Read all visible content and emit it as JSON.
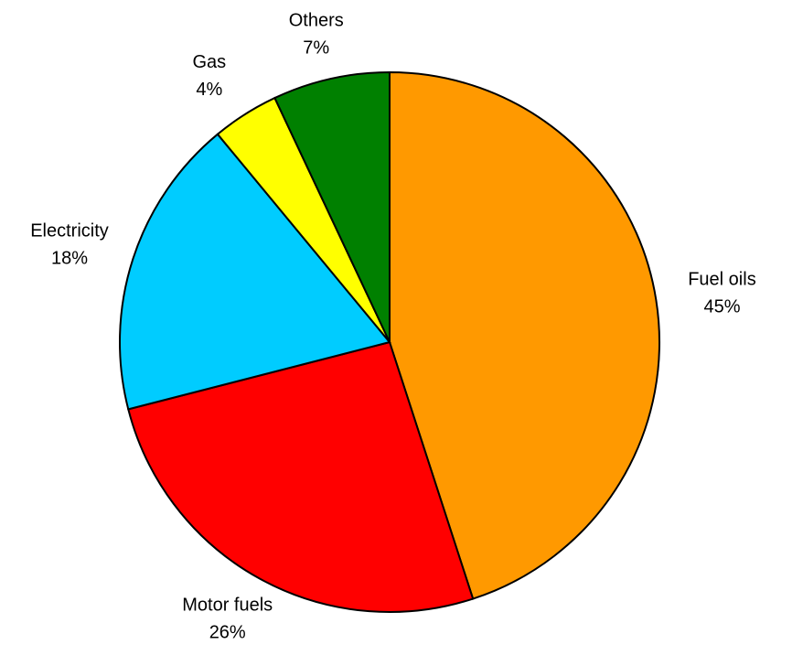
{
  "chart_data": {
    "type": "pie",
    "categories": [
      "Fuel oils",
      "Motor fuels",
      "Electricity",
      "Gas",
      "Others"
    ],
    "values": [
      45,
      26,
      18,
      4,
      7
    ],
    "value_labels": [
      "45%",
      "26%",
      "18%",
      "4%",
      "7%"
    ],
    "colors": [
      "#ff9900",
      "#ff0000",
      "#00ccff",
      "#ffff00",
      "#008000"
    ]
  }
}
